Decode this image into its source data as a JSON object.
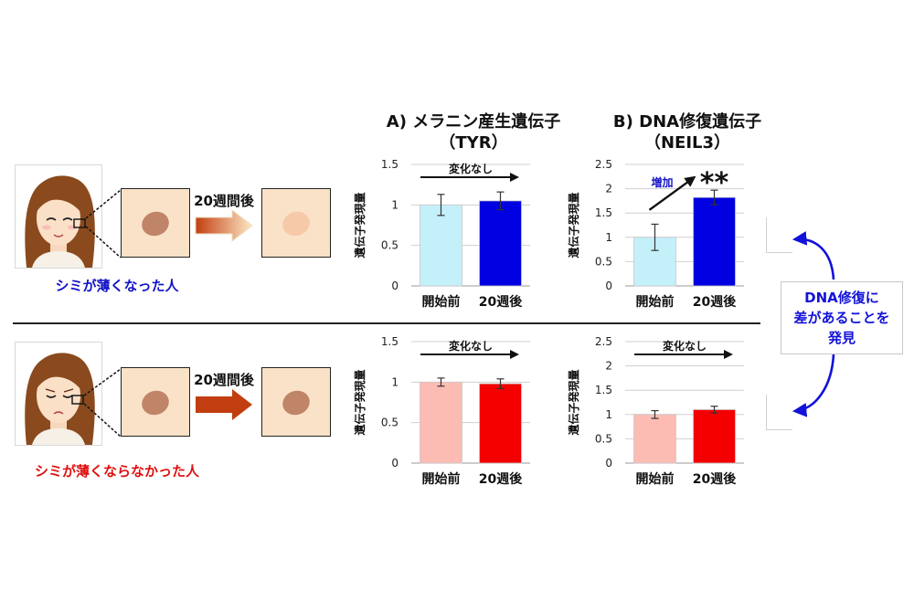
{
  "columns": {
    "a_title_line1": "A) メラニン産生遺伝子",
    "a_title_line2": "（TYR）",
    "b_title_line1": "B) DNA修復遺伝子",
    "b_title_line2": "（NEIL3）"
  },
  "rows": {
    "top": {
      "weeks_label": "20週間後",
      "case_label": "シミが薄くなった人",
      "case_color": "#1212c8"
    },
    "bottom": {
      "weeks_label": "20週間後",
      "case_label": "シミが薄くならなかった人",
      "case_color": "#e01010"
    }
  },
  "callout": {
    "text": "DNA修復に\n差があることを\n発見",
    "color": "#1212d8"
  },
  "colors": {
    "blue_light": "#c4f0fa",
    "blue_dark": "#0000e0",
    "red_light": "#fcbcb4",
    "red_dark": "#f40000",
    "spot": "#c08468",
    "skin_box": "#f9e2c8",
    "spot_faded": "#f6c9a9"
  },
  "chart_data": [
    {
      "id": "tyr-top",
      "type": "bar",
      "categories": [
        "開始前",
        "20週後"
      ],
      "values": [
        1.0,
        1.05
      ],
      "errors": [
        0.13,
        0.11
      ],
      "colors": [
        "#c4f0fa",
        "#0000e0"
      ],
      "ylabel": "遺伝子発現量",
      "ylim": [
        0,
        1.5
      ],
      "yticks": [
        "0",
        "0.5",
        "1",
        "1.5"
      ],
      "annotation": "変化なし",
      "significance": ""
    },
    {
      "id": "neil3-top",
      "type": "bar",
      "categories": [
        "開始前",
        "20週後"
      ],
      "values": [
        1.0,
        1.82
      ],
      "errors": [
        0.27,
        0.15
      ],
      "colors": [
        "#c4f0fa",
        "#0000e0"
      ],
      "ylabel": "遺伝子発現量",
      "ylim": [
        0,
        2.5
      ],
      "yticks": [
        "0",
        "0.5",
        "1",
        "1.5",
        "2",
        "2.5"
      ],
      "annotation": "増加",
      "significance": "**"
    },
    {
      "id": "tyr-bottom",
      "type": "bar",
      "categories": [
        "開始前",
        "20週後"
      ],
      "values": [
        1.0,
        0.98
      ],
      "errors": [
        0.05,
        0.06
      ],
      "colors": [
        "#fcbcb4",
        "#f40000"
      ],
      "ylabel": "遺伝子発現量",
      "ylim": [
        0,
        1.5
      ],
      "yticks": [
        "0",
        "0.5",
        "1",
        "1.5"
      ],
      "annotation": "変化なし",
      "significance": ""
    },
    {
      "id": "neil3-bottom",
      "type": "bar",
      "categories": [
        "開始前",
        "20週後"
      ],
      "values": [
        1.0,
        1.1
      ],
      "errors": [
        0.08,
        0.07
      ],
      "colors": [
        "#fcbcb4",
        "#f40000"
      ],
      "ylabel": "遺伝子発現量",
      "ylim": [
        0,
        2.5
      ],
      "yticks": [
        "0",
        "0.5",
        "1",
        "1.5",
        "2",
        "2.5"
      ],
      "annotation": "変化なし",
      "significance": ""
    }
  ]
}
